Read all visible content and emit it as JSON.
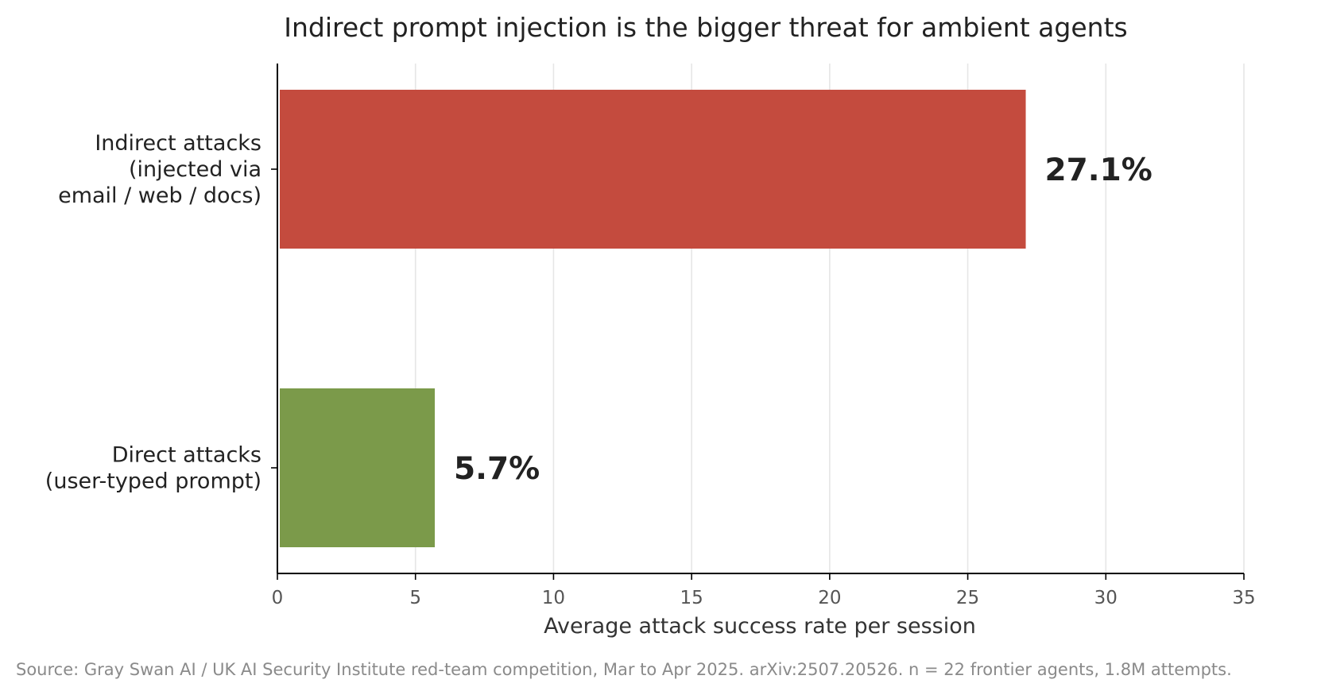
{
  "chart_data": {
    "type": "bar",
    "orientation": "horizontal",
    "title": "Indirect prompt injection is the bigger threat for ambient agents",
    "categories": [
      [
        "Indirect attacks",
        "(injected via",
        "email / web / docs)"
      ],
      [
        "Direct attacks",
        "(user-typed prompt)"
      ]
    ],
    "values": [
      27.1,
      5.7
    ],
    "value_labels": [
      "27.1%",
      "5.7%"
    ],
    "colors": [
      "#c44b3e",
      "#7b9a4a"
    ],
    "xlabel": "Average attack success rate per session",
    "ylabel": "",
    "xlim": [
      0,
      35
    ],
    "xticks": [
      0,
      5,
      10,
      15,
      20,
      25,
      30,
      35
    ],
    "grid": "vertical",
    "source": "Source: Gray Swan AI / UK AI Security Institute red-team competition, Mar to Apr 2025. arXiv:2507.20526. n = 22 frontier agents, 1.8M attempts."
  }
}
